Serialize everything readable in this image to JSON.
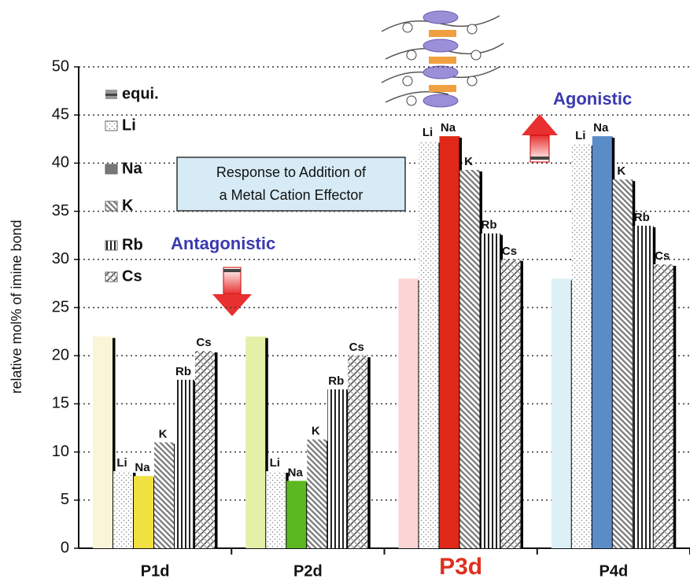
{
  "chart_data": {
    "type": "bar",
    "ylabel": "relative mol% of imine bond",
    "categories": [
      "P1d",
      "P2d",
      "P3d",
      "P4d"
    ],
    "highlight_index": 2,
    "highlight_color": "#e03020",
    "series": [
      {
        "name": "equi.",
        "color": "#8a8a8a",
        "colors": [
          "#faf5d8",
          "#e3f0a8",
          "#fbd5d5",
          "#dcf0f5"
        ],
        "values": [
          22,
          22,
          28,
          28
        ]
      },
      {
        "name": "Li",
        "color": "#bbbbbb",
        "values": [
          8,
          8,
          42.3,
          42
        ]
      },
      {
        "name": "Na",
        "color": "#777777",
        "colors": [
          "#f0e040",
          "#5cb820",
          "#e02818",
          "#5a8cc8"
        ],
        "values": [
          7.5,
          7,
          42.8,
          42.8
        ]
      },
      {
        "name": "K",
        "color": "#777777",
        "values": [
          11,
          11.3,
          39.3,
          38.3
        ]
      },
      {
        "name": "Rb",
        "color": "#333333",
        "values": [
          17.5,
          16.5,
          32.7,
          33.5
        ]
      },
      {
        "name": "Cs",
        "color": "#555555",
        "values": [
          20.5,
          20,
          30,
          29.5
        ]
      }
    ],
    "ylim": [
      0,
      50
    ],
    "yticks": [
      0,
      5,
      10,
      15,
      20,
      25,
      30,
      35,
      40,
      45,
      50
    ],
    "grid": true,
    "annotations": {
      "box": [
        "Response to Addition of",
        "a Metal Cation Effector"
      ],
      "left": "Antagonistic",
      "right": "Agonistic"
    }
  }
}
